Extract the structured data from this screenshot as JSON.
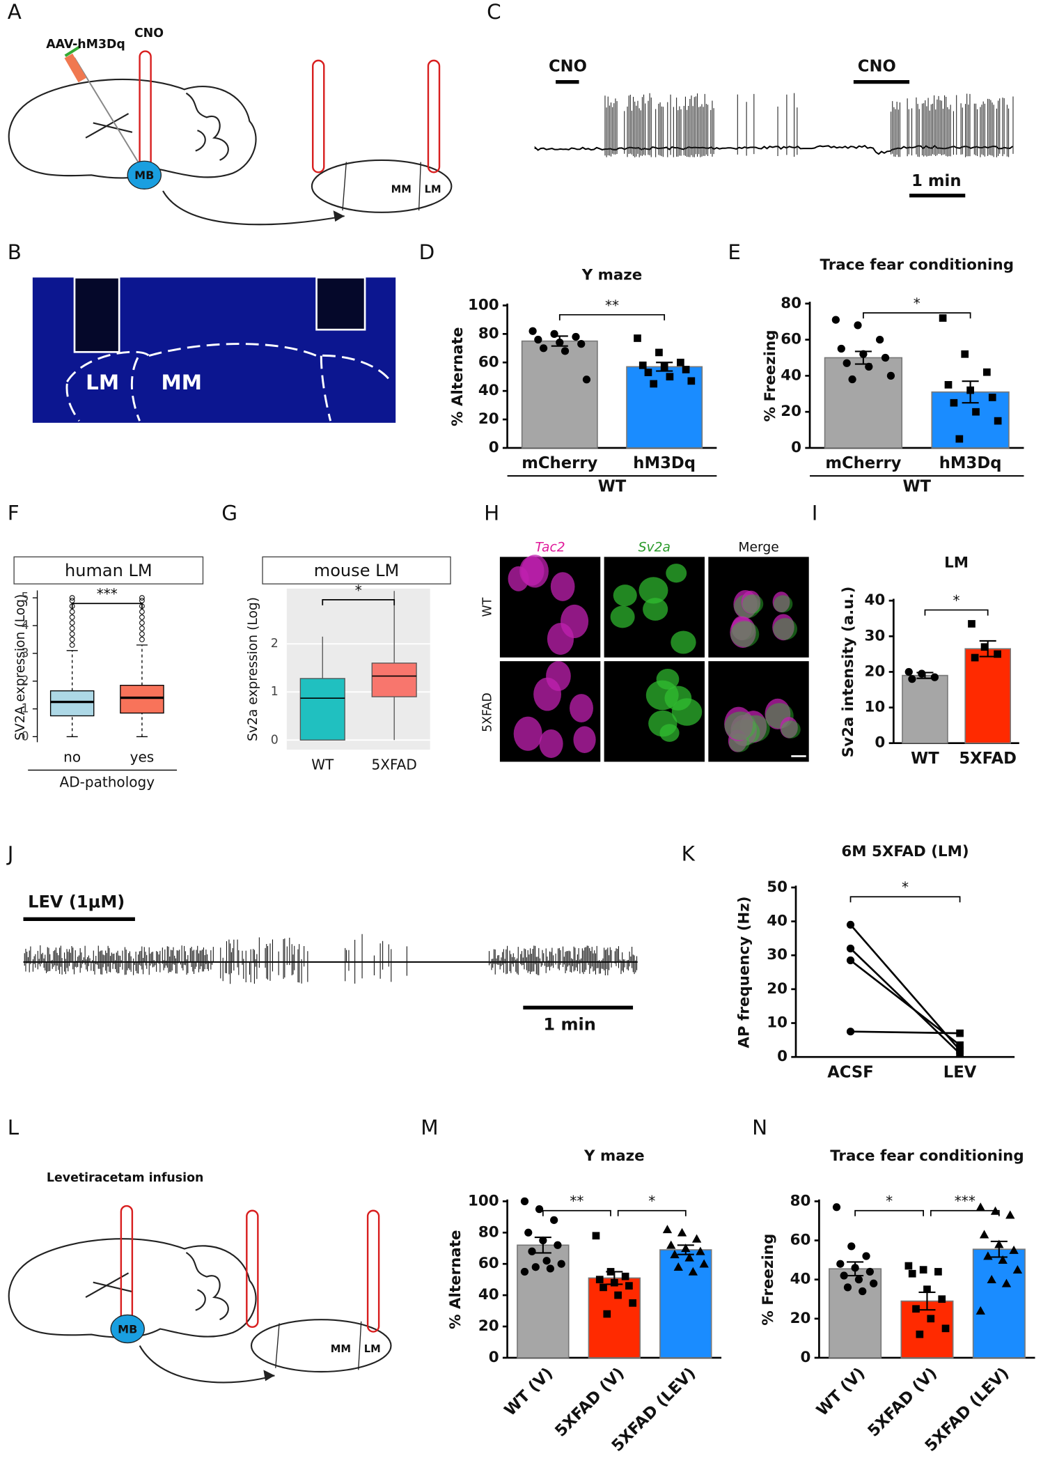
{
  "panel_labels": [
    "A",
    "B",
    "C",
    "D",
    "E",
    "F",
    "G",
    "H",
    "I",
    "J",
    "K",
    "L",
    "M",
    "N"
  ],
  "diagrams": {
    "A": {
      "injection": "AAV-hM3Dq",
      "drug": "CNO",
      "region": "MB",
      "nuclei": [
        "MM",
        "LM"
      ]
    },
    "B": {
      "regions": [
        "LM",
        "MM"
      ]
    },
    "C": {
      "drug_marks": [
        "CNO",
        "CNO"
      ],
      "scale": "1 min"
    },
    "H": {
      "columns": [
        "Tac2",
        "Sv2a",
        "Merge"
      ],
      "rows": [
        "WT",
        "5XFAD"
      ]
    },
    "J": {
      "drug": "LEV (1μM)",
      "scale": "1 min"
    },
    "L": {
      "label": "Levetiracetam infusion",
      "region": "MB",
      "nuclei": [
        "MM",
        "LM"
      ]
    }
  },
  "chart_data": [
    {
      "type": "bar",
      "title": "Y maze",
      "y_label": "% Alternate",
      "categories": [
        "mCherry",
        "hM3Dq"
      ],
      "group_label": "WT",
      "values": [
        75,
        57
      ],
      "errors": [
        3.5,
        3
      ],
      "colors": [
        "#a6a6a6",
        "#1a8cff"
      ],
      "markers": [
        "circle",
        "square"
      ],
      "points": [
        [
          82,
          80,
          78,
          76,
          74,
          73,
          70,
          68,
          48
        ],
        [
          77,
          67,
          60,
          58,
          57,
          55,
          53,
          50,
          47,
          45
        ]
      ],
      "ylim": [
        0,
        100
      ],
      "yticks": [
        0,
        20,
        40,
        60,
        80,
        100
      ],
      "significance": [
        {
          "from": "mCherry",
          "to": "hM3Dq",
          "label": "**"
        }
      ]
    },
    {
      "type": "bar",
      "title": "Trace fear conditioning",
      "y_label": "% Freezing",
      "categories": [
        "mCherry",
        "hM3Dq"
      ],
      "group_label": "WT",
      "values": [
        50,
        31
      ],
      "errors": [
        3.5,
        6
      ],
      "colors": [
        "#a6a6a6",
        "#1a8cff"
      ],
      "markers": [
        "circle",
        "square"
      ],
      "points": [
        [
          71,
          68,
          60,
          55,
          52,
          50,
          47,
          45,
          40,
          38
        ],
        [
          72,
          52,
          42,
          35,
          32,
          28,
          25,
          20,
          15,
          5
        ]
      ],
      "ylim": [
        0,
        80
      ],
      "yticks": [
        0,
        20,
        40,
        60,
        80
      ],
      "significance": [
        {
          "from": "mCherry",
          "to": "hM3Dq",
          "label": "*"
        }
      ]
    },
    {
      "type": "box",
      "title": "human LM",
      "y_label": "SV2A expression (Log)",
      "x_label": "AD-pathology",
      "categories": [
        "no",
        "yes"
      ],
      "boxes": [
        {
          "whisker_low": 0,
          "q1": 0.75,
          "median": 1.25,
          "q3": 1.65,
          "whisker_high": 3.1
        },
        {
          "whisker_low": 0,
          "q1": 0.85,
          "median": 1.4,
          "q3": 1.85,
          "whisker_high": 3.3
        }
      ],
      "outliers": [
        [
          3.3,
          3.5,
          3.7,
          3.9,
          4.1,
          4.3,
          4.5,
          4.7,
          4.9,
          5.0
        ],
        [
          3.5,
          3.7,
          3.9,
          4.1,
          4.3,
          4.5,
          4.7,
          4.9,
          5.0
        ]
      ],
      "colors": [
        "#add8e6",
        "#f8735a"
      ],
      "whisker_style": "dashed",
      "ylim": [
        -0.2,
        5.2
      ],
      "yticks": [
        0,
        1,
        2,
        3,
        4,
        5
      ],
      "significance": [
        {
          "from": "no",
          "to": "yes",
          "label": "***"
        }
      ]
    },
    {
      "type": "box",
      "title": "mouse LM",
      "y_label": "Sv2a expression (Log)",
      "categories": [
        "WT",
        "5XFAD"
      ],
      "boxes": [
        {
          "whisker_low": 0,
          "q1": 0,
          "median": 0.87,
          "q3": 1.28,
          "whisker_high": 2.15
        },
        {
          "whisker_low": 0,
          "q1": 0.9,
          "median": 1.33,
          "q3": 1.6,
          "whisker_high": 3.1
        }
      ],
      "colors": [
        "#20c0c0",
        "#f8766d"
      ],
      "whisker_style": "solid",
      "grid": true,
      "ylim": [
        -0.2,
        3.15
      ],
      "yticks": [
        0,
        1,
        2
      ],
      "significance": [
        {
          "from": "WT",
          "to": "5XFAD",
          "label": "*"
        }
      ]
    },
    {
      "type": "bar",
      "title": "LM",
      "y_label": "Sv2a intensity (a.u.)",
      "categories": [
        "WT",
        "5XFAD"
      ],
      "values": [
        19,
        26.5
      ],
      "errors": [
        0.8,
        2.2
      ],
      "colors": [
        "#a6a6a6",
        "#ff2a00"
      ],
      "markers": [
        "circle",
        "square"
      ],
      "points": [
        [
          20,
          19.5,
          18.5,
          18
        ],
        [
          33.5,
          27,
          25,
          24
        ]
      ],
      "ylim": [
        0,
        40
      ],
      "yticks": [
        0,
        10,
        20,
        30,
        40
      ],
      "significance": [
        {
          "from": "WT",
          "to": "5XFAD",
          "label": "*"
        }
      ]
    },
    {
      "type": "line",
      "title": "6M 5XFAD (LM)",
      "y_label": "AP frequency (Hz)",
      "categories": [
        "ACSF",
        "LEV"
      ],
      "markers": [
        "circle",
        "square"
      ],
      "color": "#000000",
      "series": [
        {
          "values": [
            39,
            2
          ]
        },
        {
          "values": [
            32,
            1
          ]
        },
        {
          "values": [
            28.5,
            3.5
          ]
        },
        {
          "values": [
            7.5,
            7
          ]
        }
      ],
      "ylim": [
        0,
        50
      ],
      "yticks": [
        0,
        10,
        20,
        30,
        40,
        50
      ],
      "significance": [
        {
          "from": "ACSF",
          "to": "LEV",
          "label": "*"
        }
      ]
    },
    {
      "type": "bar",
      "title": "Y maze",
      "y_label": "% Alternate",
      "categories": [
        "WT (V)",
        "5XFAD (V)",
        "5XFAD (LEV)"
      ],
      "values": [
        72,
        51,
        69
      ],
      "errors": [
        5,
        4,
        3
      ],
      "colors": [
        "#a6a6a6",
        "#ff2a00",
        "#1a8cff"
      ],
      "markers": [
        "circle",
        "square",
        "triangle"
      ],
      "points": [
        [
          100,
          95,
          88,
          80,
          75,
          72,
          68,
          62,
          60,
          58,
          57,
          55
        ],
        [
          78,
          55,
          52,
          50,
          48,
          46,
          45,
          40,
          35,
          28
        ],
        [
          82,
          80,
          76,
          72,
          70,
          68,
          66,
          64,
          60,
          58,
          55
        ]
      ],
      "ylim": [
        0,
        100
      ],
      "yticks": [
        0,
        20,
        40,
        60,
        80,
        100
      ],
      "significance": [
        {
          "from": "WT (V)",
          "to": "5XFAD (V)",
          "label": "**"
        },
        {
          "from": "5XFAD (V)",
          "to": "5XFAD (LEV)",
          "label": "*"
        }
      ]
    },
    {
      "type": "bar",
      "title": "Trace fear conditioning",
      "y_label": "% Freezing",
      "categories": [
        "WT (V)",
        "5XFAD (V)",
        "5XFAD (LEV)"
      ],
      "values": [
        45.5,
        29,
        55.5
      ],
      "errors": [
        3.5,
        4.5,
        4
      ],
      "colors": [
        "#a6a6a6",
        "#ff2a00",
        "#1a8cff"
      ],
      "markers": [
        "circle",
        "square",
        "triangle"
      ],
      "points": [
        [
          77,
          57,
          52,
          48,
          46,
          44,
          42,
          40,
          38,
          36,
          34
        ],
        [
          47,
          45,
          44,
          43,
          35,
          30,
          25,
          20,
          15,
          12
        ],
        [
          77,
          75,
          73,
          63,
          58,
          55,
          52,
          50,
          45,
          40,
          38,
          24
        ]
      ],
      "ylim": [
        0,
        80
      ],
      "yticks": [
        0,
        20,
        40,
        60,
        80
      ],
      "significance": [
        {
          "from": "WT (V)",
          "to": "5XFAD (V)",
          "label": "*"
        },
        {
          "from": "5XFAD (V)",
          "to": "5XFAD (LEV)",
          "label": "***"
        }
      ]
    }
  ]
}
